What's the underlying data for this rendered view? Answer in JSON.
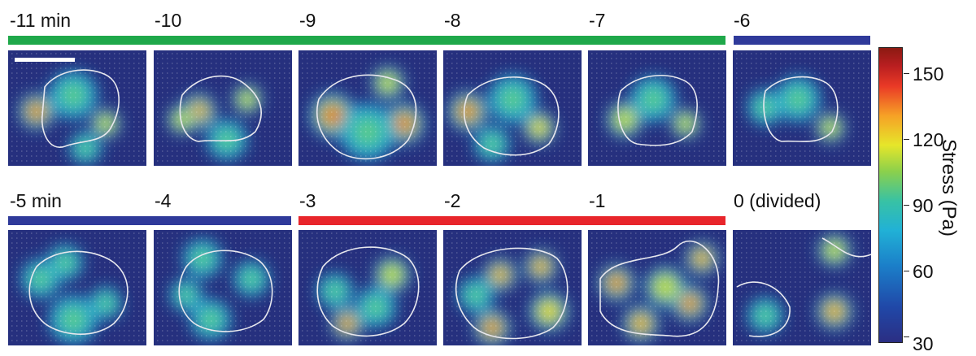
{
  "top_row": {
    "time_labels": [
      "-11 min",
      "-10",
      "-9",
      "-8",
      "-7",
      "-6"
    ]
  },
  "bottom_row": {
    "time_labels": [
      "-5 min",
      "-4",
      "-3",
      "-2",
      "-1",
      "0 (divided)"
    ]
  },
  "phase_colors": {
    "green": "#1fa84a",
    "blue": "#2f3a9a",
    "red": "#e8252b"
  },
  "colorbar": {
    "title": "Stress (Pa)",
    "ticks": [
      "150",
      "120",
      "90",
      "60",
      "30"
    ],
    "min_value": 30,
    "max_value": 165
  },
  "panel_background": "#26307e",
  "outline_color": "#e8e8ee"
}
